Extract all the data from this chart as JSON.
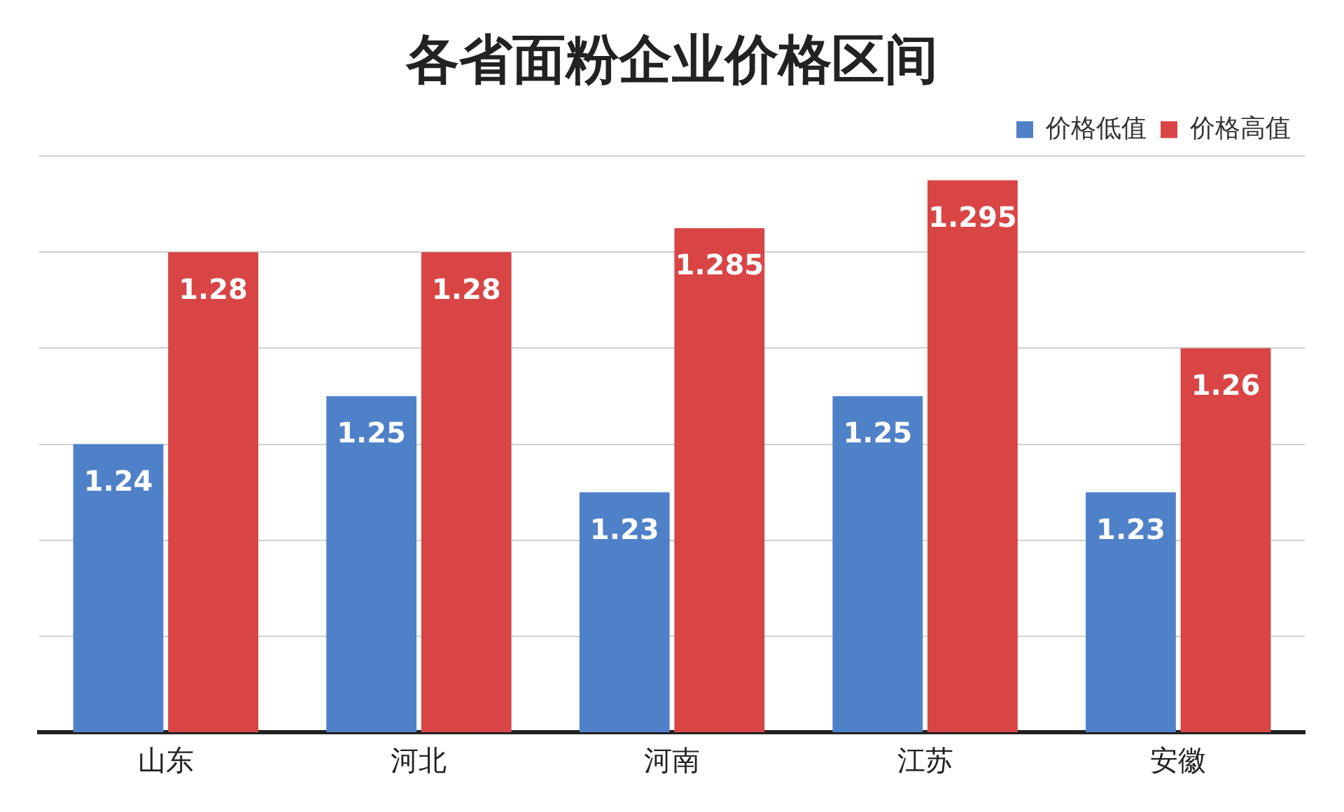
{
  "chart_data": {
    "type": "bar",
    "title": "各省面粉企业价格区间",
    "categories": [
      "山东",
      "河北",
      "河南",
      "江苏",
      "安徽"
    ],
    "series": [
      {
        "name": "价格低值",
        "color": "#4f81c9",
        "values": [
          1.24,
          1.25,
          1.23,
          1.25,
          1.23
        ]
      },
      {
        "name": "价格高值",
        "color": "#d94545",
        "values": [
          1.28,
          1.28,
          1.285,
          1.295,
          1.26
        ]
      }
    ],
    "ylim": [
      1.18,
      1.3
    ],
    "yticks": [
      {
        "value": 1.18,
        "label": null
      },
      {
        "value": 1.2,
        "label": null
      },
      {
        "value": 1.22,
        "label": null
      },
      {
        "value": 1.24,
        "label": null
      },
      {
        "value": 1.26,
        "label": null
      },
      {
        "value": 1.28,
        "label": null
      },
      {
        "value": 1.3,
        "label": null
      }
    ],
    "grid": "y",
    "legend": "top right",
    "tick_labels": "x",
    "data_labels": true
  }
}
